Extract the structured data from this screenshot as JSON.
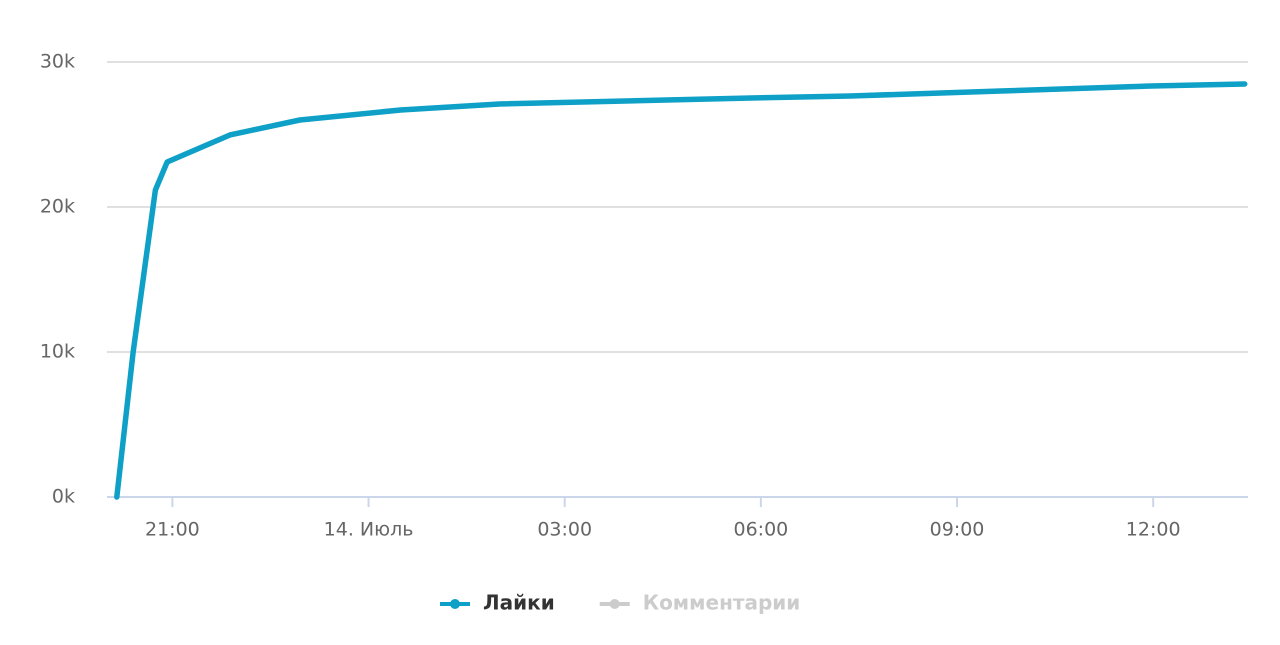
{
  "chart_data": {
    "type": "line",
    "x": [
      20.15,
      20.4,
      20.74,
      20.92,
      21.88,
      22.95,
      24.49,
      26.0,
      29.85,
      31.37,
      33.67,
      35.97,
      37.4
    ],
    "series": [
      {
        "name": "Лайки",
        "color": "#0ea0c6",
        "values": [
          0,
          10000,
          21172,
          23103,
          24966,
          26000,
          26690,
          27103,
          27517,
          27655,
          28000,
          28345,
          28483
        ]
      },
      {
        "name": "Комментарии",
        "color": "#cccccc",
        "visible": false
      }
    ],
    "xlim": [
      20.0,
      37.45
    ],
    "xticks": [
      {
        "value": 21,
        "label": "21:00"
      },
      {
        "value": 24,
        "label": "14. Июль"
      },
      {
        "value": 27,
        "label": "03:00"
      },
      {
        "value": 30,
        "label": "06:00"
      },
      {
        "value": 33,
        "label": "09:00"
      },
      {
        "value": 36,
        "label": "12:00"
      }
    ],
    "ylim": [
      0,
      30000
    ],
    "yticks": [
      {
        "value": 0,
        "label": "0k"
      },
      {
        "value": 10000,
        "label": "10k"
      },
      {
        "value": 20000,
        "label": "20k"
      },
      {
        "value": 30000,
        "label": "30k"
      }
    ],
    "grid": true
  }
}
